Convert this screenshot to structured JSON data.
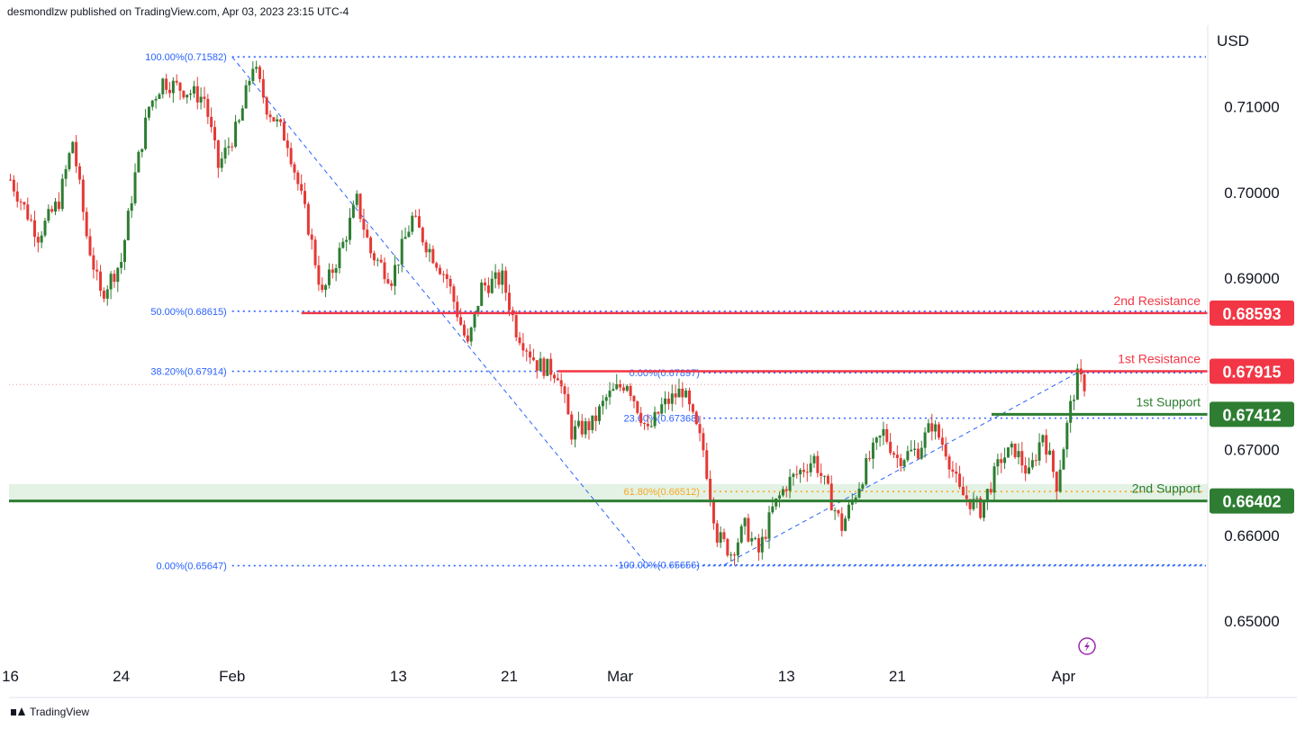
{
  "header": {
    "publisher": "desmondlzw published on TradingView.com, Apr 03, 2023 23:15 UTC-4"
  },
  "footer": {
    "brand": "TradingView"
  },
  "icons": {
    "lightning": "lightning-icon",
    "logo": "tradingview-logo-icon"
  },
  "colors": {
    "up": "#2e7d32",
    "down": "#e53935",
    "fib": "#2962ff",
    "resistance": "#f23645",
    "support": "#2e7d32",
    "golden": "#f9a825"
  },
  "chart_data": {
    "type": "candlestick",
    "currency": "USD",
    "ylim": [
      0.6453,
      0.7193
    ],
    "y_ticks": [
      "0.71000",
      "0.70000",
      "0.69000",
      "0.67000",
      "0.66000",
      "0.65000"
    ],
    "x_ticks": [
      {
        "label": "16",
        "day": 16
      },
      {
        "label": "24",
        "day": 24
      },
      {
        "label": "Feb",
        "day": 32
      },
      {
        "label": "13",
        "day": 44
      },
      {
        "label": "21",
        "day": 52
      },
      {
        "label": "Mar",
        "day": 60
      },
      {
        "label": "13",
        "day": 72
      },
      {
        "label": "21",
        "day": 80
      },
      {
        "label": "Apr",
        "day": 92
      }
    ],
    "xlim_days": [
      15.9,
      102.4
    ],
    "current_price": 0.6776,
    "fib_retracement_1": {
      "from": 0.71582,
      "to": 0.65647,
      "start_day": 32,
      "levels": [
        {
          "label": "100.00%(0.71582)",
          "price": 0.71582
        },
        {
          "label": "50.00%(0.68615)",
          "price": 0.68615
        },
        {
          "label": "38.20%(0.67914)",
          "price": 0.67914
        },
        {
          "label": "0.00%(0.65647)",
          "price": 0.65647
        }
      ]
    },
    "fib_retracement_2": {
      "from": 0.65656,
      "to": 0.67897,
      "start_day": 66,
      "levels": [
        {
          "label": "0.00%(0.67897)",
          "price": 0.67897
        },
        {
          "label": "23.60%(0.67368)",
          "price": 0.67368
        },
        {
          "label": "61.80%(0.66512)",
          "price": 0.66512
        },
        {
          "label": "100.00%(0.65656)",
          "price": 0.65656
        }
      ]
    },
    "levels": [
      {
        "name": "2nd Resistance",
        "price": 0.68593,
        "value_label": "0.68593",
        "kind": "resistance"
      },
      {
        "name": "1st Resistance",
        "price": 0.67915,
        "value_label": "0.67915",
        "kind": "resistance"
      },
      {
        "name": "1st Support",
        "price": 0.67412,
        "value_label": "0.67412",
        "kind": "support"
      },
      {
        "name": "2nd Support",
        "price": 0.66402,
        "value_label": "0.66402",
        "kind": "support"
      }
    ],
    "support_zone": [
      0.664,
      0.666
    ],
    "price_path": [
      [
        16,
        0.7015
      ],
      [
        18,
        0.695
      ],
      [
        19.5,
        0.699
      ],
      [
        20.5,
        0.706
      ],
      [
        21.5,
        0.695
      ],
      [
        22.5,
        0.688
      ],
      [
        24,
        0.692
      ],
      [
        25,
        0.702
      ],
      [
        26,
        0.71
      ],
      [
        27,
        0.713
      ],
      [
        28.5,
        0.712
      ],
      [
        30,
        0.711
      ],
      [
        31,
        0.703
      ],
      [
        32.5,
        0.708
      ],
      [
        33.5,
        0.715
      ],
      [
        34.5,
        0.71
      ],
      [
        36,
        0.706
      ],
      [
        37.5,
        0.696
      ],
      [
        38.5,
        0.688
      ],
      [
        40,
        0.694
      ],
      [
        41,
        0.699
      ],
      [
        42,
        0.693
      ],
      [
        43.5,
        0.69
      ],
      [
        45,
        0.697
      ],
      [
        46,
        0.694
      ],
      [
        47.5,
        0.69
      ],
      [
        49,
        0.682
      ],
      [
        50,
        0.689
      ],
      [
        51.5,
        0.69
      ],
      [
        52.5,
        0.684
      ],
      [
        54,
        0.68
      ],
      [
        55.5,
        0.679
      ],
      [
        56.5,
        0.672
      ],
      [
        58,
        0.673
      ],
      [
        59,
        0.676
      ],
      [
        60.5,
        0.678
      ],
      [
        62,
        0.672
      ],
      [
        63,
        0.675
      ],
      [
        64.5,
        0.677
      ],
      [
        66,
        0.67
      ],
      [
        67,
        0.66
      ],
      [
        68,
        0.658
      ],
      [
        69,
        0.661
      ],
      [
        70,
        0.658
      ],
      [
        71,
        0.663
      ],
      [
        72,
        0.666
      ],
      [
        74,
        0.669
      ],
      [
        75,
        0.665
      ],
      [
        76,
        0.661
      ],
      [
        77,
        0.665
      ],
      [
        78,
        0.669
      ],
      [
        79,
        0.672
      ],
      [
        80,
        0.669
      ],
      [
        81.5,
        0.67
      ],
      [
        82.5,
        0.673
      ],
      [
        83.5,
        0.67
      ],
      [
        84.5,
        0.665
      ],
      [
        86,
        0.663
      ],
      [
        87.5,
        0.669
      ],
      [
        88.5,
        0.67
      ],
      [
        89.5,
        0.667
      ],
      [
        90.5,
        0.672
      ],
      [
        91.5,
        0.666
      ],
      [
        92.5,
        0.675
      ],
      [
        93,
        0.6784
      ],
      [
        93.5,
        0.6776
      ]
    ]
  }
}
